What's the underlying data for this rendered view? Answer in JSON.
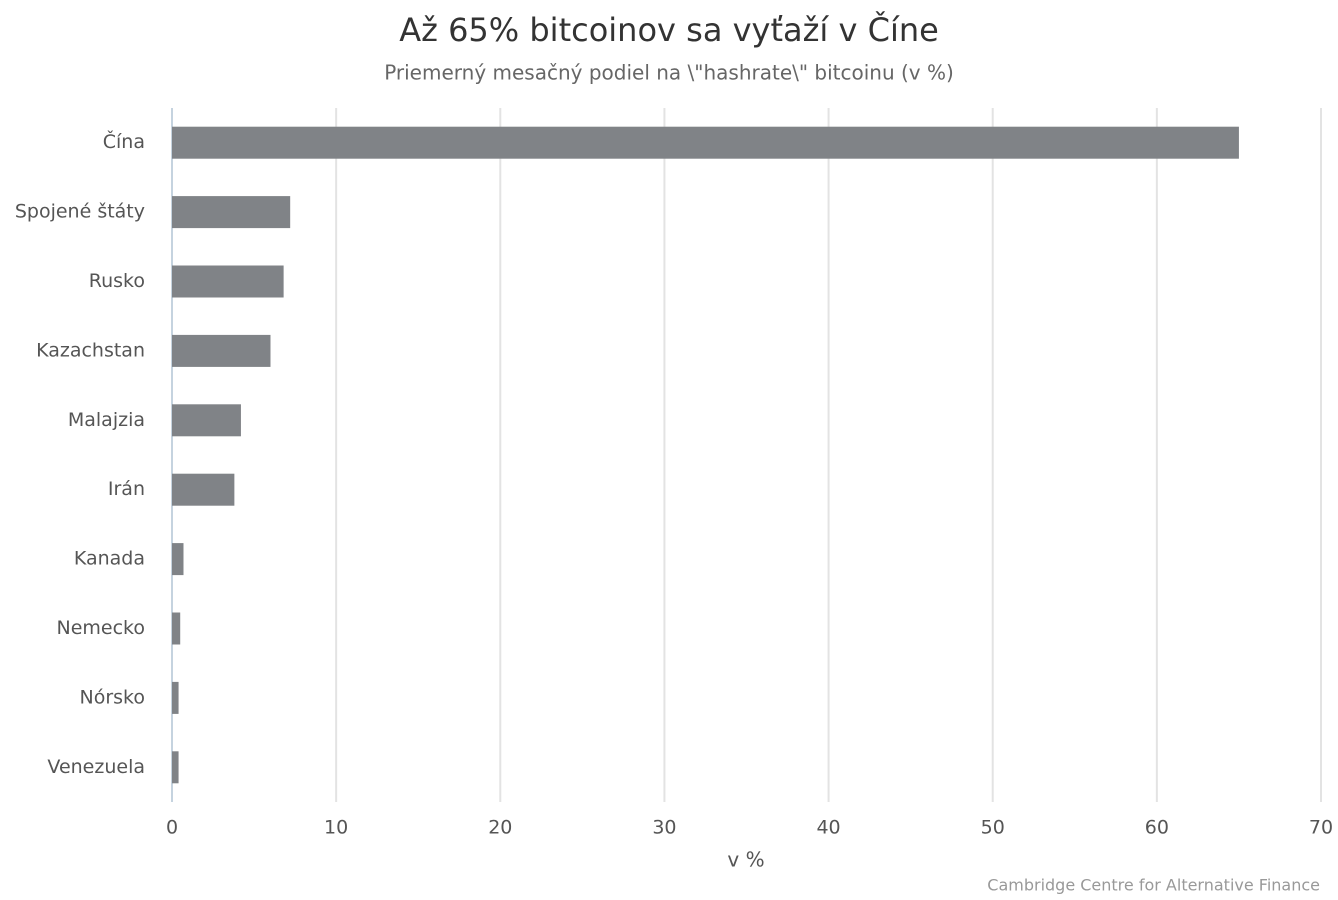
{
  "chart_data": {
    "type": "hbar",
    "title": "Až 65% bitcoinov sa vyťaží v Číne",
    "subtitle": "Priemerný mesačný podiel na \\\"hashrate\\\" bitcoinu (v %)",
    "x_label": "v %",
    "source": "Cambridge Centre for Alternative Finance",
    "categories": [
      "Čína",
      "Spojené štáty",
      "Rusko",
      "Kazachstan",
      "Malajzia",
      "Irán",
      "Kanada",
      "Nemecko",
      "Nórsko",
      "Venezuela"
    ],
    "values": [
      65,
      7.2,
      6.8,
      6.0,
      4.2,
      3.8,
      0.7,
      0.5,
      0.4,
      0.4
    ],
    "color": "#808387",
    "xlim": [
      0,
      70
    ],
    "xticks": [
      0,
      10,
      20,
      30,
      40,
      50,
      60,
      70
    ],
    "grid": true
  }
}
